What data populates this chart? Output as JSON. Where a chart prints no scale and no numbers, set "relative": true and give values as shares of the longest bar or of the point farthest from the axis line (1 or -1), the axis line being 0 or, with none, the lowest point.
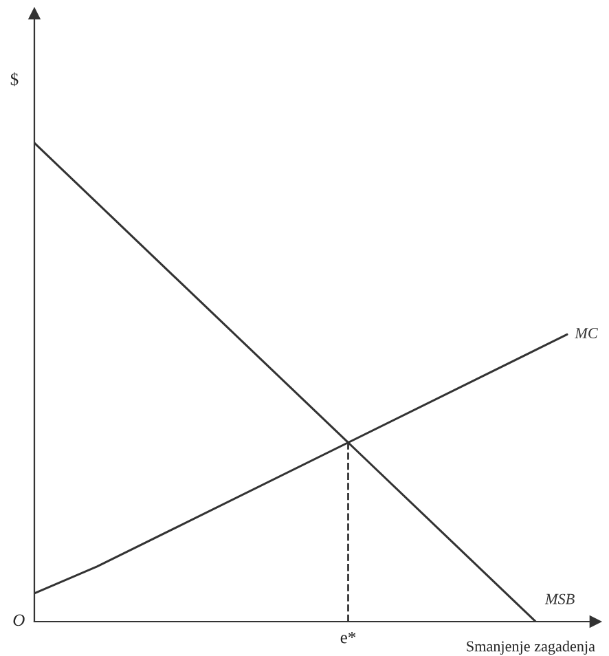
{
  "chart_data": {
    "type": "line",
    "relative": true,
    "ylabel": "$",
    "xlabel": "Smanjenje zagadenja",
    "categories": [
      null,
      null,
      null,
      null,
      null,
      null,
      null,
      null,
      null,
      null,
      null,
      null,
      null,
      null,
      null,
      null,
      null,
      null
    ],
    "series": [
      {
        "name": "MSB",
        "color": "#333333",
        "values": [
          1,
          null,
          null,
          null,
          null,
          null,
          null,
          null,
          null,
          null,
          null,
          null,
          null,
          null,
          null,
          null,
          0,
          null
        ]
      },
      {
        "name": "MC",
        "color": "#333333",
        "values": [
          0.059,
          null,
          0.115,
          null,
          null,
          null,
          null,
          null,
          null,
          null,
          null,
          null,
          null,
          null,
          null,
          null,
          null,
          0.6
        ]
      }
    ],
    "annotations": [
      "O",
      "e*"
    ],
    "grid": false,
    "legend": false,
    "marker": "none",
    "line_style": "solid"
  }
}
